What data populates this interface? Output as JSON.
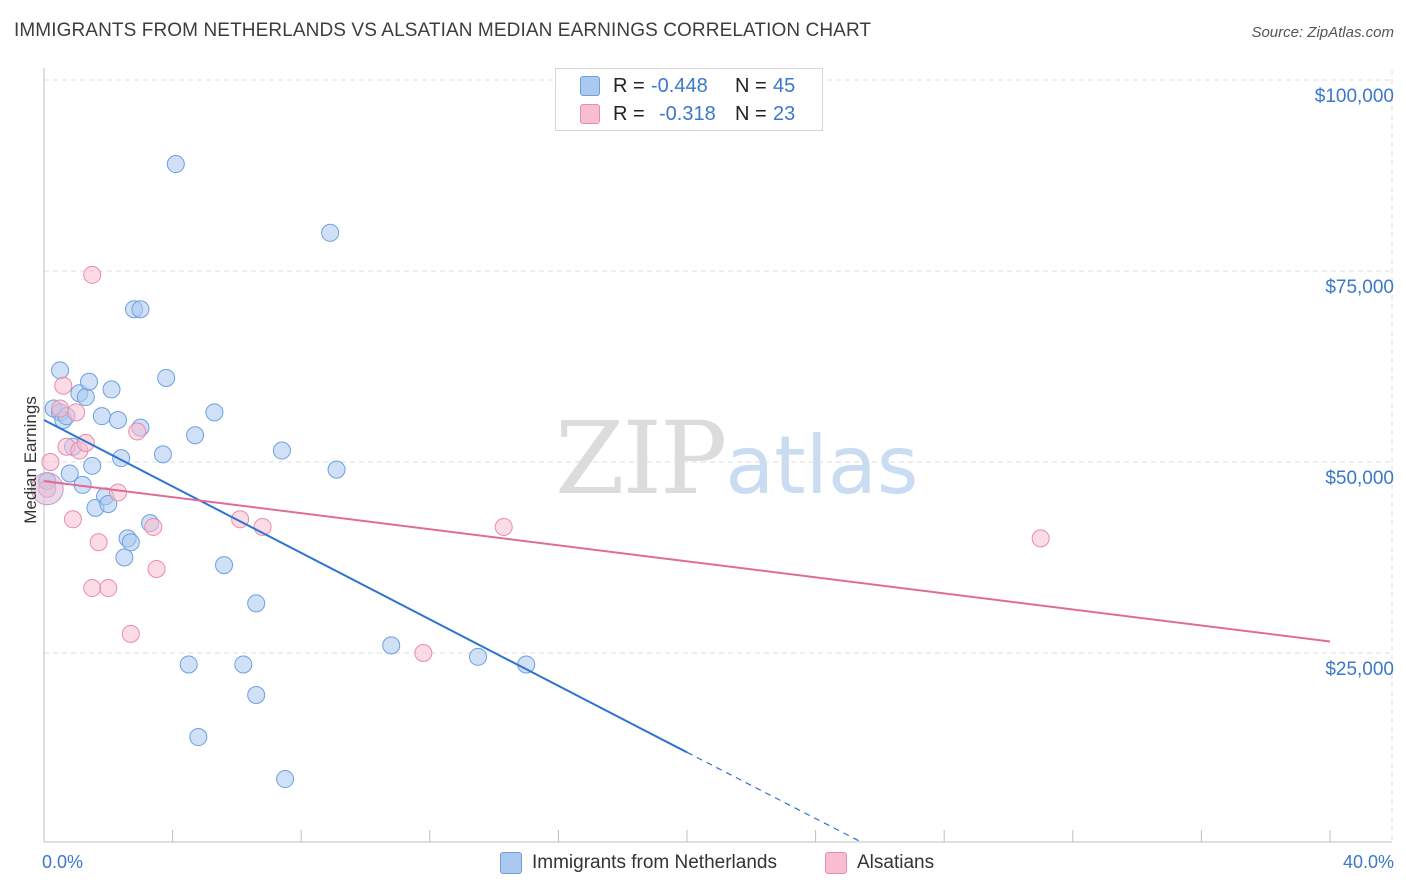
{
  "title": "IMMIGRANTS FROM NETHERLANDS VS ALSATIAN MEDIAN EARNINGS CORRELATION CHART",
  "source": "Source: ZipAtlas.com",
  "watermark": {
    "zip": "ZIP",
    "atlas": "atlas"
  },
  "legend": {
    "r_label": "R =",
    "n_label": "N =",
    "series": [
      {
        "name": "Immigrants from Netherlands",
        "r": "-0.448",
        "n": "45",
        "fill": "#aac8f0",
        "stroke": "#6d9fe0"
      },
      {
        "name": "Alsatians",
        "r": "-0.318",
        "n": "23",
        "fill": "#f7bdd0",
        "stroke": "#ec8aab"
      }
    ]
  },
  "chart_data": {
    "type": "scatter",
    "title": "IMMIGRANTS FROM NETHERLANDS VS ALSATIAN MEDIAN EARNINGS CORRELATION CHART",
    "xlabel": "",
    "ylabel": "Median Earnings",
    "xlim": [
      0,
      40
    ],
    "ylim": [
      0,
      102000
    ],
    "x_tick_labels": [
      "0.0%",
      "40.0%"
    ],
    "y_ticks": [
      25000,
      50000,
      75000,
      100000
    ],
    "y_tick_labels": [
      "$25,000",
      "$50,000",
      "$75,000",
      "$100,000"
    ],
    "grid": true,
    "series": [
      {
        "name": "Immigrants from Netherlands",
        "color": "#6d9fe0",
        "line_color": "#2f73d0",
        "points": [
          [
            0.1,
            47500
          ],
          [
            0.3,
            57000
          ],
          [
            0.5,
            56500
          ],
          [
            0.5,
            62000
          ],
          [
            0.6,
            55500
          ],
          [
            0.7,
            56000
          ],
          [
            0.8,
            48500
          ],
          [
            0.9,
            52000
          ],
          [
            1.1,
            59000
          ],
          [
            1.2,
            47000
          ],
          [
            1.3,
            58500
          ],
          [
            1.4,
            60500
          ],
          [
            1.5,
            49500
          ],
          [
            1.6,
            44000
          ],
          [
            1.8,
            56000
          ],
          [
            1.9,
            45500
          ],
          [
            2.0,
            44500
          ],
          [
            2.1,
            59500
          ],
          [
            2.3,
            55500
          ],
          [
            2.4,
            50500
          ],
          [
            2.5,
            37500
          ],
          [
            2.6,
            40000
          ],
          [
            2.7,
            39500
          ],
          [
            2.8,
            70000
          ],
          [
            3.0,
            70000
          ],
          [
            3.0,
            54500
          ],
          [
            3.3,
            42000
          ],
          [
            3.7,
            51000
          ],
          [
            3.8,
            61000
          ],
          [
            4.1,
            89000
          ],
          [
            4.5,
            23500
          ],
          [
            4.7,
            53500
          ],
          [
            4.8,
            14000
          ],
          [
            5.3,
            56500
          ],
          [
            5.6,
            36500
          ],
          [
            6.2,
            23500
          ],
          [
            6.6,
            31500
          ],
          [
            6.6,
            19500
          ],
          [
            7.4,
            51500
          ],
          [
            7.5,
            8500
          ],
          [
            8.9,
            80000
          ],
          [
            9.1,
            49000
          ],
          [
            10.8,
            26000
          ],
          [
            13.5,
            24500
          ],
          [
            15.0,
            23500
          ]
        ],
        "trend": {
          "x0": 0,
          "y0": 55500,
          "x1": 20,
          "y1": 12000,
          "dashed_to": 26,
          "dashed_y": -1000
        }
      },
      {
        "name": "Alsatians",
        "color": "#ec8aab",
        "line_color": "#e06b96",
        "points": [
          [
            0.1,
            46500
          ],
          [
            0.2,
            50000
          ],
          [
            0.5,
            57000
          ],
          [
            0.6,
            60000
          ],
          [
            0.7,
            52000
          ],
          [
            0.9,
            42500
          ],
          [
            1.0,
            56500
          ],
          [
            1.1,
            51500
          ],
          [
            1.3,
            52500
          ],
          [
            1.5,
            33500
          ],
          [
            1.7,
            39500
          ],
          [
            2.0,
            33500
          ],
          [
            2.3,
            46000
          ],
          [
            2.7,
            27500
          ],
          [
            2.9,
            54000
          ],
          [
            3.4,
            41500
          ],
          [
            3.5,
            36000
          ],
          [
            1.5,
            74500
          ],
          [
            6.1,
            42500
          ],
          [
            6.8,
            41500
          ],
          [
            11.8,
            25000
          ],
          [
            14.3,
            41500
          ],
          [
            31.0,
            40000
          ]
        ],
        "trend": {
          "x0": 0,
          "y0": 47500,
          "x1": 40,
          "y1": 26500
        }
      }
    ]
  }
}
